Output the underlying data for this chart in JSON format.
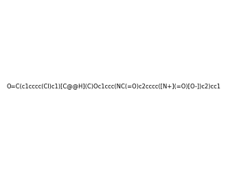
{
  "smiles": "O=C(c1cccc(Cl)c1)[C@@H](C)Oc1ccc(NC(=O)c2cccc([N+](=O)[O-])c2)cc1",
  "image_size": 300,
  "background_color": "#e8e8e8"
}
